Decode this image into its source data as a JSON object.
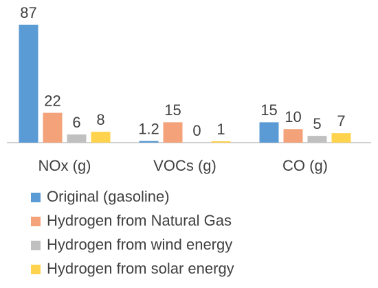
{
  "chart_data": {
    "type": "bar",
    "categories": [
      "NOx (g)",
      "VOCs (g)",
      "CO (g)"
    ],
    "series": [
      {
        "name": "Original (gasoline)",
        "color": "#5b9bd5",
        "values": [
          87,
          1.2,
          15
        ]
      },
      {
        "name": "Hydrogen from Natural Gas",
        "color": "#f4a27a",
        "values": [
          22,
          15,
          10
        ]
      },
      {
        "name": "Hydrogen from wind energy",
        "color": "#c0c0c0",
        "values": [
          6,
          0,
          5
        ]
      },
      {
        "name": "Hydrogen from solar energy",
        "color": "#ffd34d",
        "values": [
          8,
          1,
          7
        ]
      }
    ]
  }
}
